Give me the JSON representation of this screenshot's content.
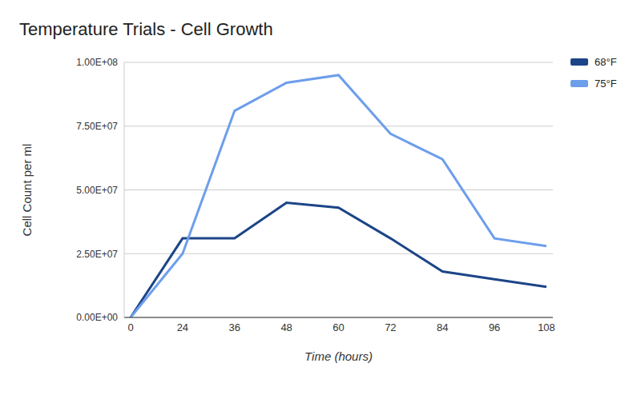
{
  "chart_data": {
    "type": "line",
    "title": "Temperature Trials - Cell Growth",
    "x_label": "Time (hours)",
    "y_label": "Cell Count per ml",
    "categories": [
      "0",
      "24",
      "36",
      "48",
      "60",
      "72",
      "84",
      "96",
      "108"
    ],
    "series": [
      {
        "name": "68°F",
        "color": "#1c4587",
        "values": [
          0,
          31000000,
          31000000,
          45000000,
          43000000,
          31000000,
          18000000,
          15000000,
          12000000
        ]
      },
      {
        "name": "75°F",
        "color": "#6d9eeb",
        "values": [
          0,
          25000000,
          81000000,
          92000000,
          95000000,
          72000000,
          62000000,
          31000000,
          28000000
        ]
      }
    ],
    "ylim": [
      0,
      100000000
    ],
    "yticks": [
      {
        "value": 0,
        "label": "0.00E+00"
      },
      {
        "value": 25000000,
        "label": "2.50E+07"
      },
      {
        "value": 50000000,
        "label": "5.00E+07"
      },
      {
        "value": 75000000,
        "label": "7.50E+07"
      },
      {
        "value": 100000000,
        "label": "1.00E+08"
      }
    ],
    "grid": true,
    "legend": "top-right"
  }
}
